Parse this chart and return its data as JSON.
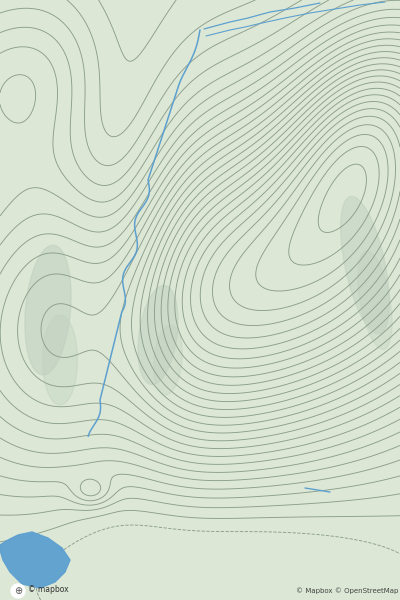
{
  "background_color": "#dce8d5",
  "contour_color": "#8c9e8c",
  "contour_linewidth": 0.65,
  "water_color": "#5da0d0",
  "rock_color": "#c0cfc0",
  "text_color": "#555555",
  "fig_width": 4.0,
  "fig_height": 6.0,
  "dpi": 100,
  "attribution_text": "© Mapbox © OpenStreetMap",
  "mapbox_text": "© mapbox"
}
